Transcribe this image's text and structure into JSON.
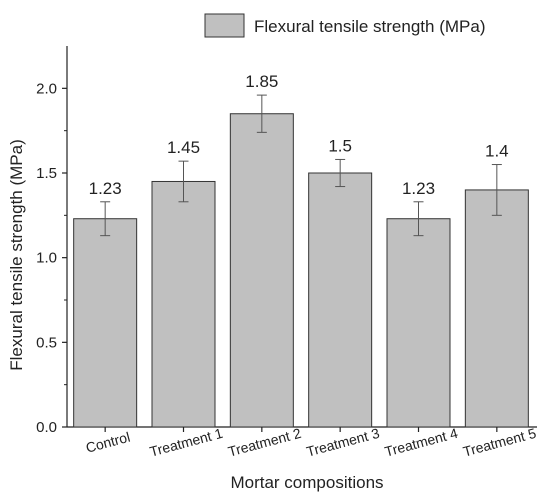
{
  "chart_data": {
    "type": "bar",
    "legend": {
      "label": "Flexural tensile strength (MPa)",
      "position": "top-right"
    },
    "xlabel": "Mortar compositions",
    "ylabel": "Flexural tensile strength (MPa)",
    "ylim": [
      0,
      2.25
    ],
    "yticks": [
      "0.0",
      "0.5",
      "1.0",
      "1.5",
      "2.0"
    ],
    "categories": [
      "Control",
      "Treatment 1",
      "Treatment 2",
      "Treatment 3",
      "Treatment 4",
      "Treatment 5"
    ],
    "values": [
      1.23,
      1.45,
      1.85,
      1.5,
      1.23,
      1.4
    ],
    "value_labels": [
      "1.23",
      "1.45",
      "1.85",
      "1.5",
      "1.23",
      "1.4"
    ],
    "error_bars": [
      0.1,
      0.12,
      0.11,
      0.08,
      0.1,
      0.15
    ],
    "grid": false,
    "colors": {
      "bar_fill": "#c0c0c0",
      "bar_stroke": "#333333",
      "axis": "#222222",
      "error_bar": "#555555"
    }
  }
}
